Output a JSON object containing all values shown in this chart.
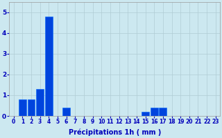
{
  "categories": [
    0,
    1,
    2,
    3,
    4,
    5,
    6,
    7,
    8,
    9,
    10,
    11,
    12,
    13,
    14,
    15,
    16,
    17,
    18,
    19,
    20,
    21,
    22,
    23
  ],
  "values": [
    0,
    0.8,
    0.8,
    1.3,
    4.8,
    0.0,
    0.4,
    0,
    0,
    0,
    0,
    0,
    0,
    0,
    0,
    0.2,
    0.4,
    0.4,
    0,
    0,
    0,
    0,
    0,
    0
  ],
  "bar_color": "#0044dd",
  "bar_edge_color": "#0066ff",
  "background_color": "#cce8f0",
  "grid_color": "#b0ccd4",
  "xlabel": "Précipitations 1h ( mm )",
  "ylim": [
    0,
    5.5
  ],
  "yticks": [
    0,
    1,
    2,
    3,
    4,
    5
  ],
  "xlabel_fontsize": 7,
  "tick_fontsize": 5.5,
  "tick_color": "#0000bb",
  "label_color": "#0000bb",
  "bar_width": 0.85
}
